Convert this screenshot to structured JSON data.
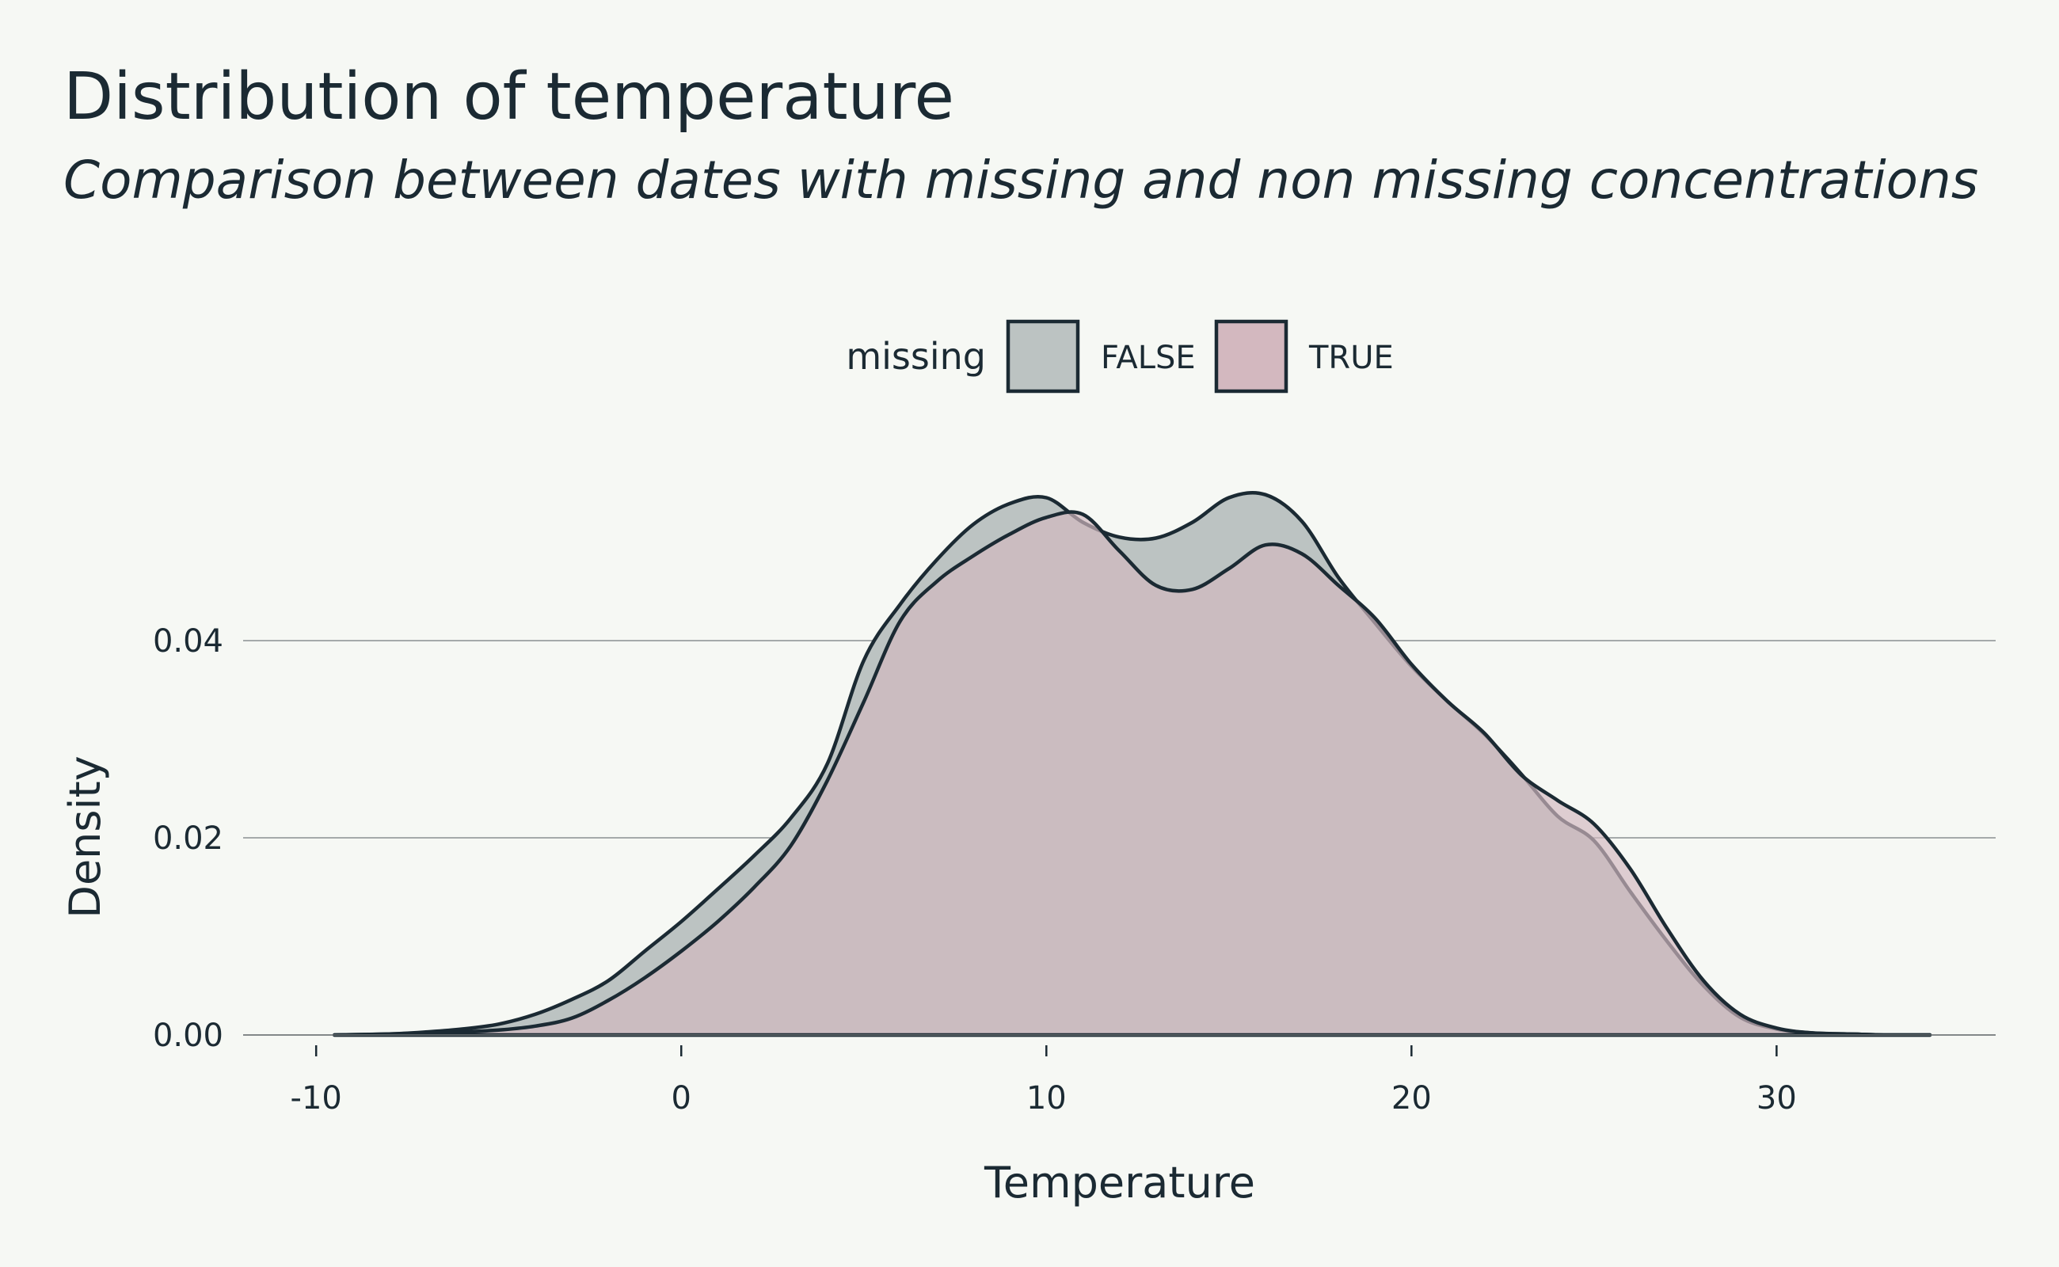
{
  "chart_data": {
    "type": "area",
    "title": "Distribution of temperature",
    "subtitle": "Comparison between dates with missing and non missing concentrations",
    "xlabel": "Temperature",
    "ylabel": "Density",
    "xlim": [
      -12,
      36
    ],
    "ylim": [
      0,
      0.06
    ],
    "xticks": [
      -10,
      0,
      10,
      20,
      30
    ],
    "xtick_labels": [
      "-10",
      "0",
      "10",
      "20",
      "30"
    ],
    "yticks": [
      0,
      0.02,
      0.04
    ],
    "ytick_labels": [
      "0.00",
      "0.02",
      "0.04"
    ],
    "grid": "horizontal",
    "legend": {
      "title": "missing",
      "position": "top"
    },
    "series": [
      {
        "name": "FALSE",
        "color": "#bcc3c2",
        "x": [
          -9.5,
          -8,
          -7,
          -6,
          -5,
          -4,
          -3,
          -2,
          -1,
          0,
          1,
          2,
          3,
          4,
          5,
          6,
          7,
          8,
          9,
          10,
          11,
          12,
          13,
          14,
          15,
          16,
          17,
          18,
          19,
          20,
          21,
          22,
          23,
          24,
          25,
          26,
          27,
          28,
          29,
          30,
          31,
          32,
          33,
          34.2
        ],
        "y": [
          0,
          0.0001,
          0.0003,
          0.0006,
          0.0011,
          0.0021,
          0.0036,
          0.0055,
          0.0085,
          0.0115,
          0.0148,
          0.0182,
          0.022,
          0.0275,
          0.038,
          0.0437,
          0.0482,
          0.0518,
          0.0539,
          0.0545,
          0.052,
          0.0505,
          0.0504,
          0.052,
          0.0545,
          0.0548,
          0.0521,
          0.0464,
          0.0418,
          0.0374,
          0.0338,
          0.0305,
          0.0265,
          0.0222,
          0.0197,
          0.0145,
          0.0095,
          0.005,
          0.0018,
          0.0006,
          0.0002,
          0.0001,
          0,
          0
        ]
      },
      {
        "name": "TRUE",
        "color": "#d3b8bf",
        "x": [
          -9.5,
          -8,
          -7,
          -6,
          -5,
          -4,
          -3,
          -2,
          -1,
          0,
          1,
          2,
          3,
          4,
          5,
          6,
          7,
          8,
          9,
          10,
          11,
          12,
          13,
          14,
          15,
          16,
          17,
          18,
          19,
          20,
          21,
          22,
          23,
          24,
          25,
          26,
          27,
          28,
          29,
          30,
          31,
          32,
          33,
          34.2
        ],
        "y": [
          0,
          0.0001,
          0.0002,
          0.0003,
          0.0005,
          0.0009,
          0.0017,
          0.0035,
          0.0058,
          0.0085,
          0.0115,
          0.015,
          0.0192,
          0.0258,
          0.0338,
          0.042,
          0.046,
          0.0486,
          0.0508,
          0.0525,
          0.0528,
          0.0491,
          0.0456,
          0.0452,
          0.0473,
          0.0497,
          0.0488,
          0.0456,
          0.0423,
          0.0376,
          0.0338,
          0.0306,
          0.0264,
          0.0238,
          0.0214,
          0.0168,
          0.0108,
          0.0055,
          0.0021,
          0.0007,
          0.0002,
          0.0001,
          0,
          0
        ]
      }
    ]
  }
}
